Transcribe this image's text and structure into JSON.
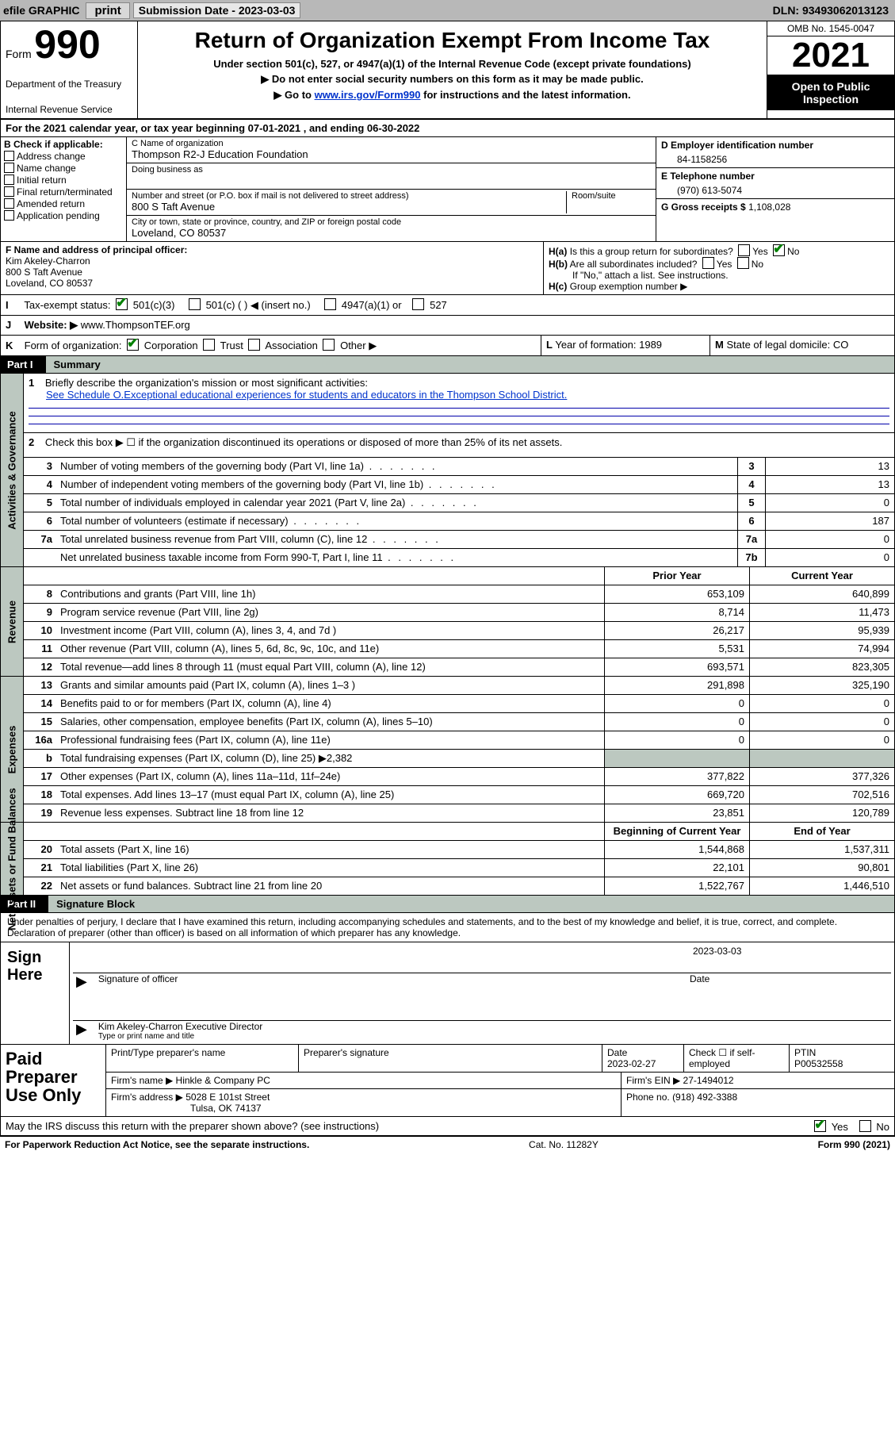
{
  "topbar": {
    "efile_label": "efile GRAPHIC",
    "print_btn": "print",
    "submission_label": "Submission Date - 2023-03-03",
    "dln_label": "DLN: 93493062013123"
  },
  "header": {
    "form_word": "Form",
    "form_number": "990",
    "title": "Return of Organization Exempt From Income Tax",
    "subtitle1": "Under section 501(c), 527, or 4947(a)(1) of the Internal Revenue Code (except private foundations)",
    "subtitle2": "Do not enter social security numbers on this form as it may be made public.",
    "subtitle3_prefix": "Go to ",
    "subtitle3_link": "www.irs.gov/Form990",
    "subtitle3_suffix": " for instructions and the latest information.",
    "dept_treasury": "Department of the Treasury",
    "irs": "Internal Revenue Service",
    "omb": "OMB No. 1545-0047",
    "year": "2021",
    "open_public": "Open to Public Inspection"
  },
  "line_a": {
    "lbl": "A",
    "text": "For the 2021 calendar year, or tax year beginning 07-01-2021   , and ending 06-30-2022"
  },
  "section_b": {
    "heading": "B Check if applicable:",
    "options": [
      "Address change",
      "Name change",
      "Initial return",
      "Final return/terminated",
      "Amended return",
      "Application pending"
    ]
  },
  "section_c": {
    "c_label": "C Name of organization",
    "org_name": "Thompson R2-J Education Foundation",
    "dba_label": "Doing business as",
    "dba_value": "",
    "street_label": "Number and street (or P.O. box if mail is not delivered to street address)",
    "room_label": "Room/suite",
    "street": "800 S Taft Avenue",
    "city_label": "City or town, state or province, country, and ZIP or foreign postal code",
    "city": "Loveland, CO  80537"
  },
  "section_d": {
    "label": "D Employer identification number",
    "value": "84-1158256"
  },
  "section_e": {
    "label": "E Telephone number",
    "value": "(970) 613-5074"
  },
  "section_g": {
    "label": "G Gross receipts $",
    "value": "1,108,028"
  },
  "section_f": {
    "label": "F Name and address of principal officer:",
    "name": "Kim Akeley-Charron",
    "street": "800 S Taft Avenue",
    "city": "Loveland, CO  80537"
  },
  "section_h": {
    "ha_label": "H(a)",
    "ha_text": "Is this a group return for subordinates?",
    "ha_yes": "Yes",
    "ha_no": "No",
    "hb_label": "H(b)",
    "hb_text": "Are all subordinates included?",
    "hb_note": "If \"No,\" attach a list. See instructions.",
    "hc_label": "H(c)",
    "hc_text": "Group exemption number ▶"
  },
  "section_i": {
    "label": "I",
    "text": "Tax-exempt status:",
    "opt_501c3": "501(c)(3)",
    "opt_501c": "501(c) (  ) ◀ (insert no.)",
    "opt_4947": "4947(a)(1) or",
    "opt_527": "527"
  },
  "section_j": {
    "label": "J",
    "text": "Website: ▶",
    "value": "www.ThompsonTEF.org"
  },
  "section_k": {
    "label": "K",
    "text": "Form of organization:",
    "corp": "Corporation",
    "trust": "Trust",
    "assoc": "Association",
    "other": "Other ▶"
  },
  "section_l": {
    "label": "L",
    "text": "Year of formation:",
    "value": "1989"
  },
  "section_m": {
    "label": "M",
    "text": "State of legal domicile:",
    "value": "CO"
  },
  "part1": {
    "part_label": "Part I",
    "part_title": "Summary",
    "q1_num": "1",
    "q1_text": "Briefly describe the organization's mission or most significant activities:",
    "q1_link": "See Schedule O.Exceptional educational experiences for students and educators in the Thompson School District.",
    "q2_num": "2",
    "q2_text": "Check this box ▶ ☐  if the organization discontinued its operations or disposed of more than 25% of its net assets.",
    "rows_single": [
      {
        "num": "3",
        "text": "Number of voting members of the governing body (Part VI, line 1a)",
        "box": "3",
        "val": "13"
      },
      {
        "num": "4",
        "text": "Number of independent voting members of the governing body (Part VI, line 1b)",
        "box": "4",
        "val": "13"
      },
      {
        "num": "5",
        "text": "Total number of individuals employed in calendar year 2021 (Part V, line 2a)",
        "box": "5",
        "val": "0"
      },
      {
        "num": "6",
        "text": "Total number of volunteers (estimate if necessary)",
        "box": "6",
        "val": "187"
      },
      {
        "num": "7a",
        "text": "Total unrelated business revenue from Part VIII, column (C), line 12",
        "box": "7a",
        "val": "0"
      },
      {
        "num": "",
        "text": "Net unrelated business taxable income from Form 990-T, Part I, line 11",
        "box": "7b",
        "val": "0"
      }
    ],
    "col_prior_hdr": "Prior Year",
    "col_curr_hdr": "Current Year",
    "rows_rev": [
      {
        "num": "8",
        "text": "Contributions and grants (Part VIII, line 1h)",
        "prior": "653,109",
        "curr": "640,899"
      },
      {
        "num": "9",
        "text": "Program service revenue (Part VIII, line 2g)",
        "prior": "8,714",
        "curr": "11,473"
      },
      {
        "num": "10",
        "text": "Investment income (Part VIII, column (A), lines 3, 4, and 7d )",
        "prior": "26,217",
        "curr": "95,939"
      },
      {
        "num": "11",
        "text": "Other revenue (Part VIII, column (A), lines 5, 6d, 8c, 9c, 10c, and 11e)",
        "prior": "5,531",
        "curr": "74,994"
      },
      {
        "num": "12",
        "text": "Total revenue—add lines 8 through 11 (must equal Part VIII, column (A), line 12)",
        "prior": "693,571",
        "curr": "823,305"
      }
    ],
    "rows_exp": [
      {
        "num": "13",
        "text": "Grants and similar amounts paid (Part IX, column (A), lines 1–3 )",
        "prior": "291,898",
        "curr": "325,190"
      },
      {
        "num": "14",
        "text": "Benefits paid to or for members (Part IX, column (A), line 4)",
        "prior": "0",
        "curr": "0"
      },
      {
        "num": "15",
        "text": "Salaries, other compensation, employee benefits (Part IX, column (A), lines 5–10)",
        "prior": "0",
        "curr": "0"
      },
      {
        "num": "16a",
        "text": "Professional fundraising fees (Part IX, column (A), line 11e)",
        "prior": "0",
        "curr": "0"
      },
      {
        "num": "b",
        "text": "Total fundraising expenses (Part IX, column (D), line 25) ▶2,382",
        "prior": "",
        "curr": "",
        "shade": true
      },
      {
        "num": "17",
        "text": "Other expenses (Part IX, column (A), lines 11a–11d, 11f–24e)",
        "prior": "377,822",
        "curr": "377,326"
      },
      {
        "num": "18",
        "text": "Total expenses. Add lines 13–17 (must equal Part IX, column (A), line 25)",
        "prior": "669,720",
        "curr": "702,516"
      },
      {
        "num": "19",
        "text": "Revenue less expenses. Subtract line 18 from line 12",
        "prior": "23,851",
        "curr": "120,789"
      }
    ],
    "col_boy_hdr": "Beginning of Current Year",
    "col_eoy_hdr": "End of Year",
    "rows_na": [
      {
        "num": "20",
        "text": "Total assets (Part X, line 16)",
        "prior": "1,544,868",
        "curr": "1,537,311"
      },
      {
        "num": "21",
        "text": "Total liabilities (Part X, line 26)",
        "prior": "22,101",
        "curr": "90,801"
      },
      {
        "num": "22",
        "text": "Net assets or fund balances. Subtract line 21 from line 20",
        "prior": "1,522,767",
        "curr": "1,446,510"
      }
    ],
    "vtab_activities": "Activities & Governance",
    "vtab_revenue": "Revenue",
    "vtab_expenses": "Expenses",
    "vtab_netassets": "Net Assets or Fund Balances"
  },
  "part2": {
    "part_label": "Part II",
    "part_title": "Signature Block",
    "declaration": "Under penalties of perjury, I declare that I have examined this return, including accompanying schedules and statements, and to the best of my knowledge and belief, it is true, correct, and complete. Declaration of preparer (other than officer) is based on all information of which preparer has any knowledge.",
    "sign_here": "Sign Here",
    "sig_of_officer": "Signature of officer",
    "sig_date": "2023-03-03",
    "date_label": "Date",
    "officer_name": "Kim Akeley-Charron  Executive Director",
    "officer_label": "Type or print name and title"
  },
  "preparer": {
    "paid_preparer": "Paid Preparer Use Only",
    "col_print_name": "Print/Type preparer's name",
    "col_sig": "Preparer's signature",
    "col_date": "Date",
    "date_val": "2023-02-27",
    "col_check": "Check ☐ if self-employed",
    "col_ptin": "PTIN",
    "ptin_val": "P00532558",
    "firm_name_lbl": "Firm's name      ▶",
    "firm_name": "Hinkle & Company PC",
    "firm_ein_lbl": "Firm's EIN ▶",
    "firm_ein": "27-1494012",
    "firm_addr_lbl": "Firm's address ▶",
    "firm_addr1": "5028 E 101st Street",
    "firm_addr2": "Tulsa, OK  74137",
    "phone_lbl": "Phone no.",
    "phone": "(918) 492-3388"
  },
  "footer": {
    "discuss": "May the IRS discuss this return with the preparer shown above? (see instructions)",
    "yes": "Yes",
    "no": "No",
    "paperwork": "For Paperwork Reduction Act Notice, see the separate instructions.",
    "catno": "Cat. No. 11282Y",
    "formref": "Form 990 (2021)"
  },
  "colors": {
    "topbar_bg": "#b8b8b8",
    "partbar_bg": "#bcc8c0",
    "check_green": "#008000",
    "link_blue": "#0033cc"
  }
}
